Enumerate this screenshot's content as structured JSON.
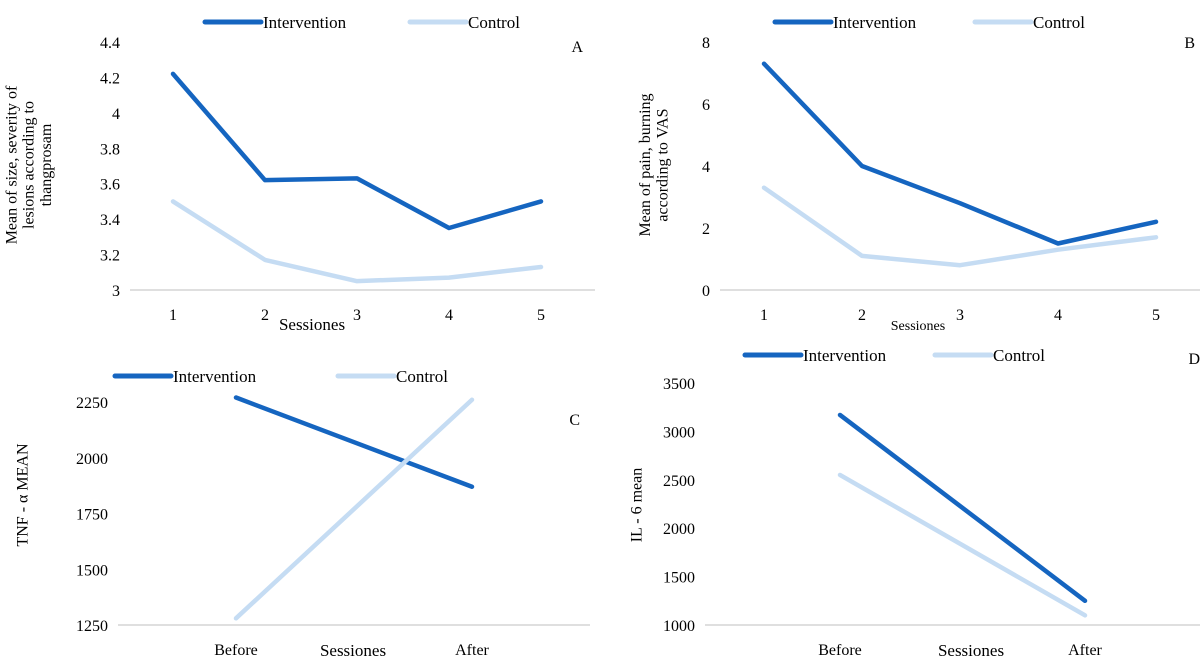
{
  "colors": {
    "intervention": "#1565C0",
    "control": "#C5DCF3",
    "axis": "#BFBFBF"
  },
  "chart_data": [
    {
      "id": "A",
      "type": "line",
      "panel_label": "A",
      "ylabel_lines": [
        "Mean of size, severity of",
        "lesions according to",
        "thangprosam"
      ],
      "xlabel": "Sessiones",
      "categories": [
        "1",
        "2",
        "3",
        "4",
        "5"
      ],
      "y_ticks": [
        "3",
        "3.2",
        "3.4",
        "3.6",
        "3.8",
        "4",
        "4.2",
        "4.4"
      ],
      "ylim": [
        3,
        4.4
      ],
      "legend_position": "top",
      "series": [
        {
          "name": "Intervention",
          "color": "#1565C0",
          "values": [
            4.22,
            3.62,
            3.63,
            3.35,
            3.5
          ]
        },
        {
          "name": "Control",
          "color": "#C5DCF3",
          "values": [
            3.5,
            3.17,
            3.05,
            3.07,
            3.13
          ]
        }
      ]
    },
    {
      "id": "B",
      "type": "line",
      "panel_label": "B",
      "ylabel_lines": [
        "Mean of pain, burning",
        "according to VAS"
      ],
      "xlabel": "Sessiones",
      "categories": [
        "1",
        "2",
        "3",
        "4",
        "5"
      ],
      "y_ticks": [
        "0",
        "2",
        "4",
        "6",
        "8"
      ],
      "ylim": [
        0,
        8
      ],
      "legend_position": "top",
      "series": [
        {
          "name": "Intervention",
          "color": "#1565C0",
          "values": [
            7.3,
            4.0,
            2.8,
            1.5,
            2.2
          ]
        },
        {
          "name": "Control",
          "color": "#C5DCF3",
          "values": [
            3.3,
            1.1,
            0.8,
            1.3,
            1.7
          ]
        }
      ]
    },
    {
      "id": "C",
      "type": "line",
      "panel_label": "C",
      "ylabel_lines": [
        "TNF - α MEAN"
      ],
      "xlabel": "Sessiones",
      "categories": [
        "Before",
        "After"
      ],
      "y_ticks": [
        "1250",
        "1500",
        "1750",
        "2000",
        "2250"
      ],
      "ylim": [
        1250,
        2250
      ],
      "legend_position": "top",
      "series": [
        {
          "name": "Intervention",
          "color": "#1565C0",
          "values": [
            2270,
            1870
          ]
        },
        {
          "name": "Control",
          "color": "#C5DCF3",
          "values": [
            1280,
            2260
          ]
        }
      ]
    },
    {
      "id": "D",
      "type": "line",
      "panel_label": "D",
      "ylabel_lines": [
        "IL - 6 mean"
      ],
      "xlabel": "Sessiones",
      "categories": [
        "Before",
        "After"
      ],
      "y_ticks": [
        "1000",
        "1500",
        "2000",
        "2500",
        "3000",
        "3500"
      ],
      "ylim": [
        1000,
        3500
      ],
      "legend_position": "top",
      "series": [
        {
          "name": "Intervention",
          "color": "#1565C0",
          "values": [
            3170,
            1250
          ]
        },
        {
          "name": "Control",
          "color": "#C5DCF3",
          "values": [
            2550,
            1100
          ]
        }
      ]
    }
  ]
}
